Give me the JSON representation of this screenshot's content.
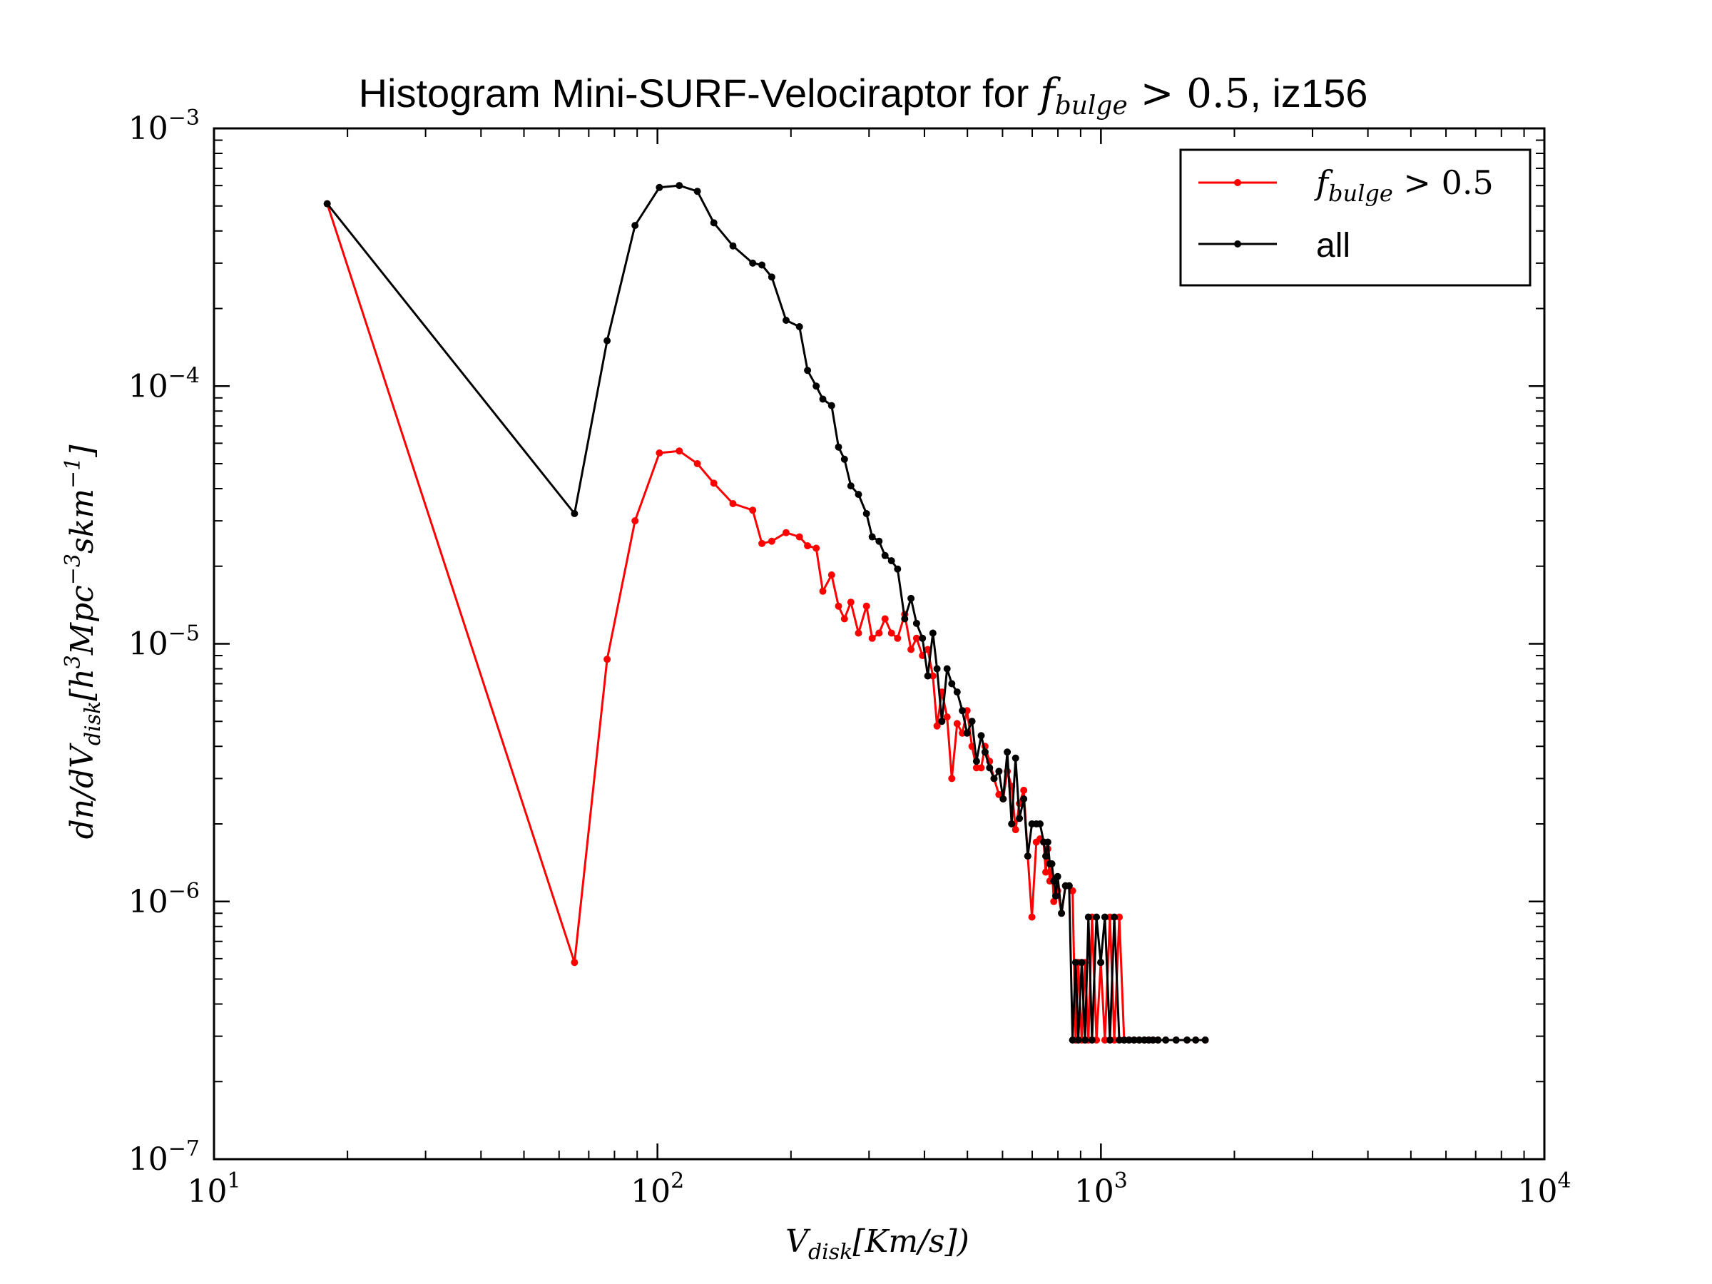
{
  "chart_data": {
    "type": "line",
    "title": {
      "prefix": "Histogram Mini-SURF-Velociraptor for ",
      "math": "f",
      "math_sub": "bulge",
      "math_rest": " > 0.5",
      "suffix": ", iz156"
    },
    "xlabel": {
      "main": "V",
      "sub": "disk",
      "rest": "[Km/s])"
    },
    "ylabel": {
      "a": "dn/dV",
      "sub": "disk",
      "b": "[h",
      "sup1": "3",
      "c": "Mpc",
      "sup2": "−3",
      "d": "skm",
      "sup3": "−1",
      "e": "]"
    },
    "xscale": "log",
    "yscale": "log",
    "xlim": [
      10,
      10000
    ],
    "ylim": [
      1e-07,
      0.001
    ],
    "xticks": [
      {
        "value": 10,
        "base": "10",
        "exp": "1"
      },
      {
        "value": 100,
        "base": "10",
        "exp": "2"
      },
      {
        "value": 1000,
        "base": "10",
        "exp": "3"
      },
      {
        "value": 10000,
        "base": "10",
        "exp": "4"
      }
    ],
    "yticks": [
      {
        "value": 1e-07,
        "base": "10",
        "exp": "−7"
      },
      {
        "value": 1e-06,
        "base": "10",
        "exp": "−6"
      },
      {
        "value": 1e-05,
        "base": "10",
        "exp": "−5"
      },
      {
        "value": 0.0001,
        "base": "10",
        "exp": "−4"
      },
      {
        "value": 0.001,
        "base": "10",
        "exp": "−3"
      }
    ],
    "legend_position": "top-right",
    "series": [
      {
        "name": "f_bulge > 0.5",
        "legend": {
          "math": "f",
          "sub": "bulge",
          "rest": " > 0.5"
        },
        "color": "#ff0000",
        "x": [
          18,
          65,
          77,
          89,
          101,
          112,
          123,
          134,
          148,
          164,
          172,
          181,
          195,
          209,
          218,
          228,
          236,
          247,
          256,
          264,
          273,
          284,
          296,
          305,
          316,
          326,
          337,
          348,
          361,
          373,
          384,
          396,
          407,
          418,
          427,
          438,
          450,
          461,
          474,
          487,
          499,
          512,
          524,
          537,
          548,
          561,
          574,
          589,
          602,
          615,
          629,
          642,
          655,
          670,
          684,
          699,
          715,
          729,
          743,
          751,
          759,
          767,
          775,
          783,
          791,
          799,
          815,
          832,
          848,
          863,
          877,
          889,
          905,
          921,
          937,
          955,
          977,
          999,
          1021,
          1048,
          1072,
          1100,
          1128,
          1157,
          1188,
          1220,
          1253,
          1282,
          1311,
          1345,
          1400,
          1478,
          1564,
          1636,
          1719
        ],
        "y": [
          0.00051,
          5.8e-07,
          8.7e-06,
          3e-05,
          5.5e-05,
          5.6e-05,
          5e-05,
          4.2e-05,
          3.5e-05,
          3.3e-05,
          2.45e-05,
          2.5e-05,
          2.7e-05,
          2.6e-05,
          2.4e-05,
          2.35e-05,
          1.6e-05,
          1.85e-05,
          1.4e-05,
          1.25e-05,
          1.45e-05,
          1.1e-05,
          1.4e-05,
          1.05e-05,
          1.1e-05,
          1.25e-05,
          1.1e-05,
          1.05e-05,
          1.3e-05,
          9.5e-06,
          1.05e-05,
          9e-06,
          9.5e-06,
          7.5e-06,
          4.8e-06,
          6.5e-06,
          5.2e-06,
          3e-06,
          4.9e-06,
          4.5e-06,
          5.5e-06,
          4e-06,
          3.3e-06,
          3.3e-06,
          4e-06,
          3.5e-06,
          3e-06,
          2.6e-06,
          2.5e-06,
          3.2e-06,
          2.8e-06,
          1.9e-06,
          2.4e-06,
          2.7e-06,
          1.5e-06,
          8.7e-07,
          1.7e-06,
          1.75e-06,
          1.7e-06,
          1.3e-06,
          1.6e-06,
          1.2e-06,
          1.4e-06,
          1e-06,
          1.15e-06,
          1.1e-06,
          9e-07,
          1.15e-06,
          1.15e-06,
          1.1e-06,
          2.9e-07,
          5.8e-07,
          2.9e-07,
          5.8e-07,
          2.9e-07,
          8.7e-07,
          2.9e-07,
          5.8e-07,
          2.9e-07,
          8.7e-07,
          2.9e-07,
          8.7e-07,
          2.9e-07,
          2.9e-07,
          2.9e-07,
          2.9e-07,
          2.9e-07,
          2.9e-07,
          2.9e-07,
          2.9e-07,
          2.9e-07,
          2.9e-07,
          2.9e-07,
          2.9e-07,
          2.9e-07
        ]
      },
      {
        "name": "all",
        "legend": {
          "text": "all"
        },
        "color": "#000000",
        "x": [
          18,
          65,
          77,
          89,
          101,
          112,
          123,
          134,
          148,
          164,
          172,
          181,
          195,
          209,
          218,
          228,
          236,
          247,
          256,
          264,
          273,
          284,
          296,
          305,
          316,
          326,
          337,
          348,
          361,
          373,
          384,
          396,
          407,
          418,
          427,
          438,
          450,
          461,
          474,
          487,
          499,
          512,
          524,
          537,
          548,
          561,
          574,
          589,
          602,
          615,
          629,
          642,
          655,
          670,
          684,
          699,
          715,
          729,
          743,
          751,
          759,
          767,
          775,
          783,
          791,
          799,
          815,
          832,
          848,
          863,
          877,
          889,
          905,
          921,
          937,
          955,
          977,
          999,
          1021,
          1048,
          1072,
          1100,
          1128,
          1157,
          1188,
          1220,
          1253,
          1282,
          1311,
          1345,
          1400,
          1478,
          1564,
          1636,
          1719
        ],
        "y": [
          0.00051,
          3.2e-05,
          0.00015,
          0.00042,
          0.00059,
          0.0006,
          0.00057,
          0.00043,
          0.00035,
          0.0003,
          0.000295,
          0.000265,
          0.00018,
          0.00017,
          0.000115,
          0.0001,
          8.9e-05,
          8.4e-05,
          5.8e-05,
          5.2e-05,
          4.1e-05,
          3.8e-05,
          3.2e-05,
          2.6e-05,
          2.5e-05,
          2.2e-05,
          2.1e-05,
          1.95e-05,
          1.25e-05,
          1.5e-05,
          1.2e-05,
          1.05e-05,
          7.5e-06,
          1.1e-05,
          8e-06,
          5e-06,
          8e-06,
          7e-06,
          6.5e-06,
          5.5e-06,
          4.5e-06,
          5e-06,
          3.5e-06,
          4.4e-06,
          3.8e-06,
          3.3e-06,
          3e-06,
          3.2e-06,
          2.5e-06,
          3.8e-06,
          2e-06,
          3.6e-06,
          2.1e-06,
          2.5e-06,
          1.5e-06,
          2e-06,
          2e-06,
          2e-06,
          1.7e-06,
          1.5e-06,
          1.7e-06,
          1.4e-06,
          1.4e-06,
          1.2e-06,
          1.05e-06,
          1.25e-06,
          9e-07,
          1.15e-06,
          1.15e-06,
          2.9e-07,
          5.8e-07,
          2.9e-07,
          5.8e-07,
          2.9e-07,
          8.7e-07,
          2.9e-07,
          8.7e-07,
          5.8e-07,
          8.7e-07,
          2.9e-07,
          8.7e-07,
          2.9e-07,
          2.9e-07,
          2.9e-07,
          2.9e-07,
          2.9e-07,
          2.9e-07,
          2.9e-07,
          2.9e-07,
          2.9e-07,
          2.9e-07,
          2.9e-07,
          2.9e-07,
          2.9e-07,
          2.9e-07
        ]
      }
    ]
  }
}
